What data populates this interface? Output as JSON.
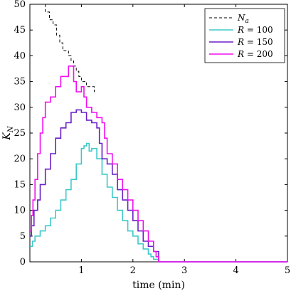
{
  "chart_data": {
    "type": "line",
    "xlabel": "time (min)",
    "ylabel": "K_N",
    "xlim": [
      0,
      5
    ],
    "ylim": [
      0,
      50
    ],
    "xticks": [
      1,
      2,
      3,
      4,
      5
    ],
    "yticks": [
      0,
      5,
      10,
      15,
      20,
      25,
      30,
      35,
      40,
      45,
      50
    ],
    "grid": false,
    "legend_position": "top-right",
    "series": [
      {
        "name": "N_a",
        "color": "#000000",
        "style": "dashed",
        "x": [
          0.2,
          0.3,
          0.38,
          0.45,
          0.52,
          0.58,
          0.64,
          0.7,
          0.75,
          0.8,
          0.85,
          0.9,
          0.95,
          1.0,
          1.1,
          1.2,
          1.25
        ],
        "y": [
          50,
          48.5,
          47,
          46,
          44,
          42.5,
          41,
          41,
          40,
          39,
          38,
          37,
          36,
          35,
          34,
          34,
          33
        ]
      },
      {
        "name": "R = 100",
        "color": "#3ec8c8",
        "style": "solid",
        "x": [
          0,
          0.05,
          0.1,
          0.2,
          0.3,
          0.4,
          0.5,
          0.6,
          0.7,
          0.8,
          0.9,
          1.0,
          1.05,
          1.1,
          1.15,
          1.2,
          1.3,
          1.4,
          1.5,
          1.6,
          1.7,
          1.8,
          1.9,
          2.0,
          2.1,
          2.2,
          2.3,
          2.35,
          2.4,
          2.5,
          3.0,
          4.0,
          5.0
        ],
        "y": [
          3,
          4,
          5,
          6,
          7,
          8.5,
          10,
          12,
          14,
          16,
          19,
          22,
          22.5,
          23,
          21.5,
          22,
          20,
          17,
          14.5,
          12.5,
          10,
          8,
          6,
          5,
          3.5,
          2.5,
          1.5,
          1,
          0.5,
          0,
          0,
          0,
          0
        ]
      },
      {
        "name": "R = 150",
        "color": "#6a1fc7",
        "style": "solid",
        "x": [
          0,
          0.03,
          0.08,
          0.15,
          0.2,
          0.3,
          0.4,
          0.5,
          0.6,
          0.7,
          0.8,
          0.9,
          1.0,
          1.1,
          1.2,
          1.3,
          1.35,
          1.4,
          1.5,
          1.6,
          1.7,
          1.8,
          1.9,
          2.0,
          2.1,
          2.2,
          2.3,
          2.4,
          2.5,
          3.0,
          4.0,
          5.0
        ],
        "y": [
          5,
          7,
          10,
          12,
          15,
          18,
          21,
          24,
          26,
          27,
          29,
          29.5,
          29,
          27.5,
          27,
          26,
          23,
          20,
          19,
          17,
          14,
          12,
          10,
          8,
          6,
          4,
          3,
          2,
          0,
          0,
          0,
          0
        ]
      },
      {
        "name": "R = 200",
        "color": "#f010f0",
        "style": "solid",
        "x": [
          0,
          0.03,
          0.06,
          0.1,
          0.15,
          0.2,
          0.25,
          0.3,
          0.4,
          0.5,
          0.6,
          0.7,
          0.75,
          0.8,
          0.85,
          0.9,
          1.0,
          1.05,
          1.1,
          1.2,
          1.3,
          1.4,
          1.45,
          1.5,
          1.6,
          1.7,
          1.8,
          1.9,
          2.0,
          2.1,
          2.2,
          2.3,
          2.4,
          2.45,
          2.5,
          3.0,
          4.0,
          5.0
        ],
        "y": [
          6,
          9,
          12,
          16,
          21,
          25,
          28,
          31,
          32,
          34,
          36,
          36,
          38,
          38,
          35,
          33,
          34,
          32,
          30,
          29,
          28,
          27,
          24,
          21,
          19,
          16,
          14,
          12,
          10,
          8,
          6,
          4,
          2,
          1,
          0,
          0,
          0,
          0
        ]
      }
    ]
  },
  "legend": {
    "labels": [
      "N_a",
      "R = 100",
      "R = 150",
      "R = 200"
    ]
  }
}
